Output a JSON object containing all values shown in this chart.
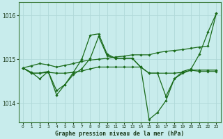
{
  "title": "Graphe pression niveau de la mer (hPa)",
  "background_color": "#c8ecec",
  "grid_color": "#b0d8d8",
  "line_color": "#1a6b1a",
  "xlim": [
    -0.5,
    23.5
  ],
  "ylim": [
    1013.55,
    1016.3
  ],
  "yticks": [
    1014,
    1015,
    1016
  ],
  "xticks": [
    0,
    1,
    2,
    3,
    4,
    5,
    6,
    7,
    8,
    9,
    10,
    11,
    12,
    13,
    14,
    15,
    16,
    17,
    18,
    19,
    20,
    21,
    22,
    23
  ],
  "series": [
    [
      1014.8,
      1014.85,
      1014.9,
      1014.87,
      1014.82,
      1014.86,
      1014.9,
      1014.95,
      1014.98,
      1015.0,
      1015.02,
      1015.05,
      1015.07,
      1015.1,
      1015.1,
      1015.1,
      1015.15,
      1015.18,
      1015.2,
      1015.22,
      1015.25,
      1015.28,
      1015.3,
      1016.05
    ],
    [
      1014.8,
      1014.7,
      1014.55,
      1014.72,
      1014.18,
      1014.42,
      1014.7,
      1015.0,
      1015.55,
      1015.58,
      1015.12,
      1015.02,
      1015.02,
      1015.02,
      1014.82,
      1013.62,
      1013.78,
      1014.05,
      1014.55,
      1014.72,
      1014.78,
      1015.12,
      1015.62,
      1016.05
    ],
    [
      1014.8,
      1014.68,
      1014.68,
      1014.7,
      1014.68,
      1014.68,
      1014.7,
      1014.73,
      1014.78,
      1014.82,
      1014.82,
      1014.82,
      1014.82,
      1014.82,
      1014.82,
      1014.68,
      1014.68,
      1014.68,
      1014.68,
      1014.7,
      1014.75,
      1014.75,
      1014.75,
      1014.75
    ],
    [
      1014.8,
      1014.68,
      1014.68,
      1014.72,
      1014.28,
      1014.42,
      1014.65,
      1014.78,
      1015.02,
      1015.52,
      1015.08,
      1015.02,
      1015.02,
      1015.02,
      1014.82,
      1014.68,
      1014.68,
      1014.15,
      1014.55,
      1014.68,
      1014.75,
      1014.72,
      1014.72,
      1014.72
    ]
  ]
}
